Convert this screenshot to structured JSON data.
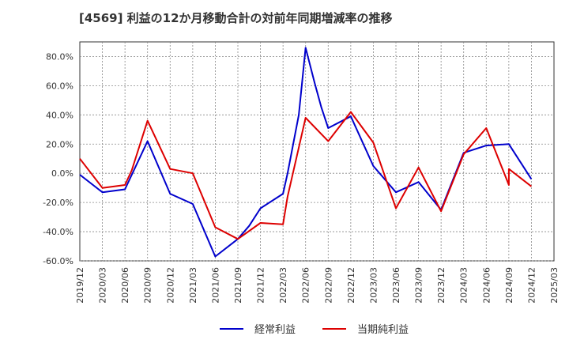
{
  "chart_data": {
    "type": "line",
    "title": "[4569]  利益の12か月移動合計の対前年同期増減率の推移",
    "xlabel": "",
    "ylabel": "",
    "x": [
      "2019/12",
      "2020/03",
      "2020/06",
      "2020/09",
      "2020/12",
      "2021/03",
      "2021/06",
      "2021/09",
      "2021/12",
      "2022/03",
      "2022/06",
      "2022/09",
      "2022/12",
      "2023/03",
      "2023/06",
      "2023/09",
      "2023/12",
      "2024/03",
      "2024/06",
      "2024/09",
      "2024/12",
      "2025/03"
    ],
    "yticks": [
      "80.0%",
      "60.0%",
      "40.0%",
      "20.0%",
      "0.0%",
      "-20.0%",
      "-40.0%",
      "-60.0%"
    ],
    "ylim": [
      -60,
      90
    ],
    "grid": true,
    "legend_position": "bottom",
    "series": [
      {
        "name": "経常利益",
        "color": "#0000cc",
        "values": [
          -1,
          -13,
          -11,
          22,
          -14,
          -21,
          -57,
          -45,
          -24,
          -14,
          86,
          31,
          39,
          5,
          -13,
          -6,
          -25,
          14,
          19,
          20,
          -4,
          null
        ],
        "extra_points": [
          {
            "x_index": 7.5,
            "value": -36
          },
          {
            "x_index": 9.2,
            "value": 0
          },
          {
            "x_index": 9.7,
            "value": 40
          },
          {
            "x_index": 10.4,
            "value": 62
          },
          {
            "x_index": 10.7,
            "value": 45
          }
        ]
      },
      {
        "name": "当期純利益",
        "color": "#dd0000",
        "values": [
          10,
          -10,
          -8,
          36,
          3,
          0,
          -37,
          -45,
          -34,
          -35,
          38,
          22,
          42,
          21,
          -24,
          4,
          -26,
          13,
          31,
          -8,
          -9,
          null
        ],
        "extra_points": [
          {
            "x_index": 2.3,
            "value": 2
          },
          {
            "x_index": 9.2,
            "value": -16
          },
          {
            "x_index": 19.0,
            "value": 3
          }
        ]
      }
    ]
  }
}
